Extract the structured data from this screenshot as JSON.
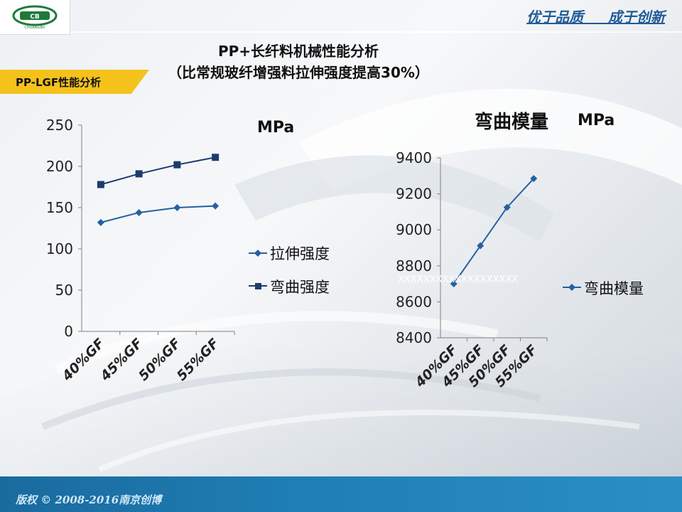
{
  "slide": {
    "slogan": "优于品质     成于创新",
    "title_line1": "PP+长纤料机械性能分析",
    "title_line2": "（比常规玻纤增强料拉伸强度提高30%）",
    "section_tag": "PP-LGF性能分析",
    "footer": "版权 © 2008-2016南京创博",
    "logo_text": "CHUANGBO"
  },
  "colors": {
    "series_primary": "#2560a2",
    "series_dark": "#1d3c6e",
    "footer": "#1f7fb5",
    "tag": "#f5c21c"
  },
  "chart_data": [
    {
      "type": "line",
      "title": "",
      "unit_label": "MPa",
      "categories": [
        "40%GF",
        "45%GF",
        "50%GF",
        "55%GF"
      ],
      "ylim": [
        0,
        250
      ],
      "yticks": [
        0,
        50,
        100,
        150,
        200,
        250
      ],
      "series": [
        {
          "name": "拉伸强度",
          "values": [
            132,
            144,
            150,
            152
          ],
          "marker": "diamond",
          "color": "#2560a2"
        },
        {
          "name": "弯曲强度",
          "values": [
            178,
            191,
            202,
            211
          ],
          "marker": "square",
          "color": "#1d3c6e"
        }
      ],
      "legend": "right"
    },
    {
      "type": "line",
      "title": "弯曲模量",
      "unit_label": "MPa",
      "categories": [
        "40%GF",
        "45%GF",
        "50%GF",
        "55%GF"
      ],
      "ylim": [
        8400,
        9400
      ],
      "yticks": [
        8400,
        8600,
        8800,
        9000,
        9200,
        9400
      ],
      "series": [
        {
          "name": "弯曲模量",
          "values": [
            8700,
            8912,
            9125,
            9285
          ],
          "marker": "diamond",
          "color": "#2560a2"
        }
      ],
      "annotation": "XXXXXXXXXXXXXXXXXXX",
      "legend": "right"
    }
  ]
}
